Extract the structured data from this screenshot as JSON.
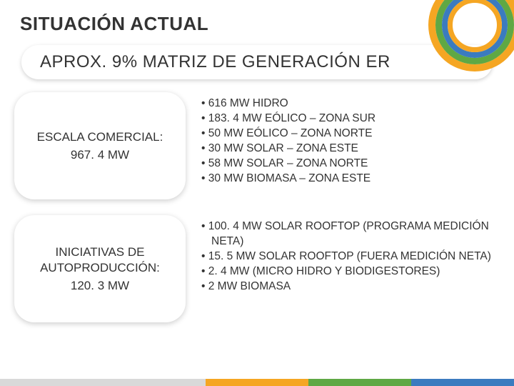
{
  "title": "SITUACIÓN ACTUAL",
  "subtitle": "APROX. 9% MATRIZ DE GENERACIÓN ER",
  "colors": {
    "text": "#333333",
    "bullet": "#333333",
    "card_bg": "#ffffff",
    "shadow": "rgba(0,0,0,0.2)",
    "swirl": [
      "#f5a623",
      "#5fa844",
      "#3b7bbf",
      "#f5a623"
    ],
    "footer": [
      "#d9d9d9",
      "#f5a623",
      "#5fa844",
      "#3b7bbf"
    ]
  },
  "typography": {
    "title_fontsize": 26,
    "subtitle_fontsize": 24,
    "card_fontsize": 17,
    "bullet_fontsize": 15.5,
    "font_family": "Trebuchet MS"
  },
  "sections": [
    {
      "card_title": "ESCALA COMERCIAL:",
      "card_value": "967. 4 MW",
      "bullets": [
        "616 MW HIDRO",
        "183. 4 MW EÓLICO – ZONA SUR",
        "50 MW EÓLICO –  ZONA NORTE",
        "30 MW SOLAR – ZONA ESTE",
        "58 MW SOLAR – ZONA NORTE",
        "30 MW BIOMASA – ZONA ESTE"
      ]
    },
    {
      "card_title": "INICIATIVAS DE AUTOPRODUCCIÓN:",
      "card_value": "120. 3 MW",
      "bullets": [
        "100. 4 MW SOLAR ROOFTOP (PROGRAMA MEDICIÓN NETA)",
        "15. 5 MW SOLAR ROOFTOP (FUERA MEDICIÓN NETA)",
        "2. 4 MW (MICRO HIDRO Y BIODIGESTORES)",
        "2 MW BIOMASA"
      ]
    }
  ]
}
